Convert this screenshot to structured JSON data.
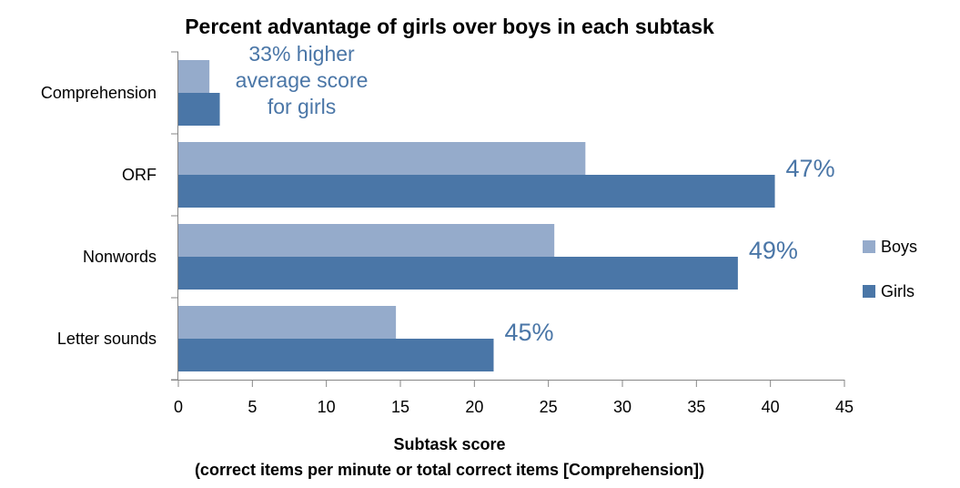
{
  "chart_data": {
    "type": "bar",
    "orientation": "horizontal",
    "title": "Percent advantage of girls over boys in each subtask",
    "xlabel": "Subtask score",
    "xlabel_sub": "(correct items per minute or total correct items [Comprehension])",
    "ylabel": "",
    "xlim": [
      0,
      45
    ],
    "xticks": [
      0,
      5,
      10,
      15,
      20,
      25,
      30,
      35,
      40,
      45
    ],
    "categories": [
      "Comprehension",
      "ORF",
      "Nonwords",
      "Letter sounds"
    ],
    "series": [
      {
        "name": "Boys",
        "color": "#95abcb",
        "values": [
          2.1,
          27.5,
          25.4,
          14.7
        ]
      },
      {
        "name": "Girls",
        "color": "#4a76a7",
        "values": [
          2.8,
          40.3,
          37.8,
          21.3
        ]
      }
    ],
    "annotations": [
      {
        "category": "Comprehension",
        "lines": [
          "33% higher",
          "average score",
          "for girls"
        ]
      },
      {
        "category": "ORF",
        "lines": [
          "47%"
        ]
      },
      {
        "category": "Nonwords",
        "lines": [
          "49%"
        ]
      },
      {
        "category": "Letter sounds",
        "lines": [
          "45%"
        ]
      }
    ],
    "annotation_color": "#4a76a7",
    "grid": false,
    "legend_position": "right"
  }
}
